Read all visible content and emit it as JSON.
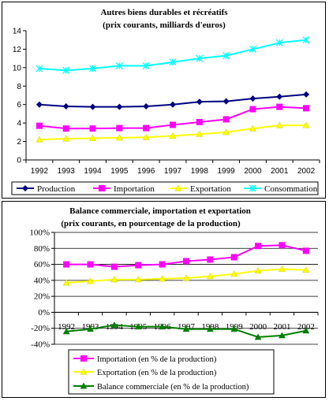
{
  "chart_data": [
    {
      "type": "line",
      "title": "Autres biens durables et récréatifs",
      "subtitle": "(prix courants, milliards d'euros)",
      "x": [
        "1992",
        "1993",
        "1994",
        "1995",
        "1996",
        "1997",
        "1998",
        "1999",
        "2000",
        "2001",
        "2002"
      ],
      "ylim": [
        0,
        14
      ],
      "yticks": [
        0,
        2,
        4,
        6,
        8,
        10,
        12,
        14
      ],
      "ytick_labels": [
        "0",
        "2",
        "4",
        "6",
        "8",
        "10",
        "12",
        "14"
      ],
      "grid": false,
      "legend_position": "bottom",
      "series": [
        {
          "name": "Production",
          "color": "#00007f",
          "marker": "diamond",
          "values": [
            6.0,
            5.8,
            5.75,
            5.75,
            5.8,
            6.0,
            6.3,
            6.35,
            6.65,
            6.85,
            7.1
          ]
        },
        {
          "name": "Importation",
          "color": "#ff00ff",
          "marker": "square",
          "values": [
            3.7,
            3.4,
            3.4,
            3.45,
            3.45,
            3.8,
            4.1,
            4.4,
            5.5,
            5.75,
            5.6
          ]
        },
        {
          "name": "Exportation",
          "color": "#ffff00",
          "marker": "triangle",
          "values": [
            2.2,
            2.3,
            2.35,
            2.4,
            2.45,
            2.6,
            2.8,
            3.0,
            3.4,
            3.75,
            3.75
          ]
        },
        {
          "name": "Consommation",
          "color": "#00ffff",
          "marker": "x",
          "values": [
            9.9,
            9.7,
            9.9,
            10.2,
            10.2,
            10.6,
            11.0,
            11.3,
            12.0,
            12.7,
            13.0
          ]
        }
      ]
    },
    {
      "type": "line",
      "title": "Balance commerciale, importation et exportation",
      "subtitle": "(prix courants, en pourcentage de la production)",
      "x": [
        "1992",
        "1993",
        "1994",
        "1995",
        "1996",
        "1997",
        "1998",
        "1999",
        "2000",
        "2001",
        "2002"
      ],
      "ylim": [
        -40,
        100
      ],
      "yticks": [
        -40,
        -20,
        0,
        20,
        40,
        60,
        80,
        100
      ],
      "ytick_labels": [
        "-40%",
        "-20%",
        "0%",
        "20%",
        "40%",
        "60%",
        "80%",
        "100%"
      ],
      "grid": true,
      "legend_position": "bottom",
      "series": [
        {
          "name": "Importation (en % de la production)",
          "color": "#ff00ff",
          "marker": "square",
          "values": [
            60,
            60,
            57,
            59,
            60,
            64,
            66,
            69,
            83,
            84,
            77
          ]
        },
        {
          "name": "Exportation (en % de la production)",
          "color": "#ffff00",
          "marker": "triangle",
          "values": [
            37,
            39,
            41,
            41,
            42,
            43,
            45,
            48,
            52,
            54,
            53
          ]
        },
        {
          "name": "Balance commerciale (en %  de la production)",
          "color": "#007f00",
          "marker": "triangle",
          "values": [
            -24,
            -21,
            -16,
            -18,
            -18,
            -21,
            -21,
            -21,
            -31,
            -29,
            -23
          ]
        }
      ]
    }
  ]
}
